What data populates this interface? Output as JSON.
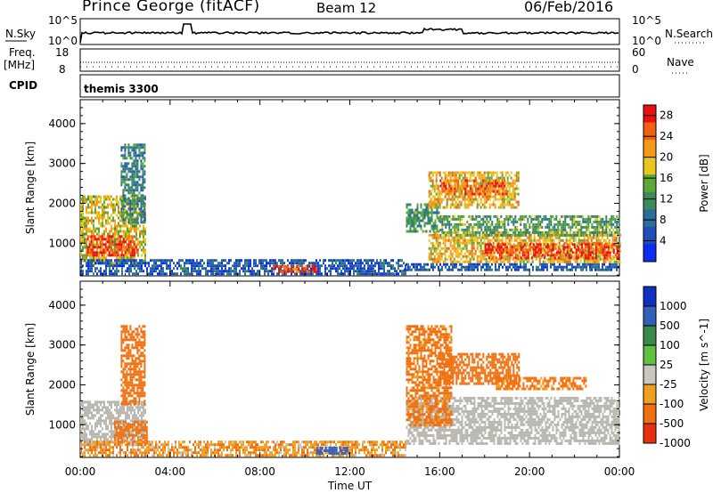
{
  "header": {
    "station": "Prince George (fitACF)",
    "beam": "Beam 12",
    "date": "06/Feb/2016"
  },
  "strips": {
    "nsky_label": "N.Sky",
    "nsky_ticks": [
      "10^5",
      "10^0"
    ],
    "nsearch_label": "N.Search",
    "nsearch_ticks": [
      "10^5",
      "10^0"
    ],
    "freq_label": "Freq.",
    "freq_unit": "[MHz]",
    "freq_ticks": [
      "18",
      "8"
    ],
    "nave_label": "Nave",
    "nave_ticks": [
      "60",
      "0"
    ],
    "cpid_label": "CPID",
    "cpid_value": "themis 3300"
  },
  "colors": {
    "power_scale": [
      "#0a2df2",
      "#1f4fb8",
      "#2c6e9a",
      "#3a8a5a",
      "#5aa838",
      "#e8c81e",
      "#f59a14",
      "#f06010",
      "#e81010"
    ],
    "velocity_scale": [
      "#1030c0",
      "#3060b8",
      "#3a8a4a",
      "#60c040",
      "#c8c8c0",
      "#f0a020",
      "#f07010",
      "#e83010",
      "#e01010"
    ],
    "ground_scatter": "#b8b8b0"
  },
  "chart_data": [
    {
      "type": "heatmap",
      "quantity": "Power",
      "xlabel": "",
      "ylabel": "Slant Range [km]",
      "x_ticks": [
        "00:00",
        "04:00",
        "08:00",
        "12:00",
        "16:00",
        "20:00",
        "00:00"
      ],
      "xlim_hours": [
        0,
        24
      ],
      "y_ticks": [
        1000,
        2000,
        3000,
        4000
      ],
      "ylim": [
        180,
        4600
      ],
      "colorbar": {
        "label": "Power [dB]",
        "ticks": [
          4,
          8,
          12,
          16,
          20,
          24,
          28
        ],
        "range": [
          0,
          30
        ]
      },
      "regions": [
        {
          "t0": 0.0,
          "t1": 2.9,
          "r0": 500,
          "r1": 2200,
          "db": 18
        },
        {
          "t0": 0.3,
          "t1": 2.6,
          "r0": 700,
          "r1": 1200,
          "db": 26
        },
        {
          "t0": 1.8,
          "t1": 2.9,
          "r0": 1500,
          "r1": 3500,
          "db": 10
        },
        {
          "t0": 0.0,
          "t1": 14.5,
          "r0": 200,
          "r1": 600,
          "db": 6
        },
        {
          "t0": 8.5,
          "t1": 10.5,
          "r0": 250,
          "r1": 450,
          "db": 27
        },
        {
          "t0": 14.4,
          "t1": 24.0,
          "r0": 300,
          "r1": 500,
          "db": 6
        },
        {
          "t0": 14.5,
          "t1": 16.0,
          "r0": 1300,
          "r1": 2000,
          "db": 12
        },
        {
          "t0": 15.5,
          "t1": 24.0,
          "r0": 500,
          "r1": 1300,
          "db": 20
        },
        {
          "t0": 18.0,
          "t1": 24.0,
          "r0": 600,
          "r1": 1000,
          "db": 27
        },
        {
          "t0": 16.0,
          "t1": 24.0,
          "r0": 1200,
          "r1": 1700,
          "db": 13
        },
        {
          "t0": 15.5,
          "t1": 19.5,
          "r0": 1900,
          "r1": 2800,
          "db": 20
        },
        {
          "t0": 16.0,
          "t1": 19.0,
          "r0": 2200,
          "r1": 2600,
          "db": 25
        }
      ]
    },
    {
      "type": "heatmap",
      "quantity": "Velocity",
      "xlabel": "Time UT",
      "ylabel": "Slant Range [km]",
      "x_ticks": [
        "00:00",
        "04:00",
        "08:00",
        "12:00",
        "16:00",
        "20:00",
        "00:00"
      ],
      "xlim_hours": [
        0,
        24
      ],
      "y_ticks": [
        1000,
        2000,
        3000,
        4000
      ],
      "ylim": [
        180,
        4600
      ],
      "colorbar": {
        "label": "Velocity [m s^-1]",
        "ticks": [
          1000,
          500,
          100,
          25,
          -25,
          -100,
          -500,
          -1000
        ]
      },
      "regions": [
        {
          "t0": 0.0,
          "t1": 2.9,
          "r0": 500,
          "r1": 1600,
          "v": 0,
          "ground": true
        },
        {
          "t0": 1.5,
          "t1": 3.0,
          "r0": 500,
          "r1": 1100,
          "v": -300
        },
        {
          "t0": 1.8,
          "t1": 2.9,
          "r0": 1500,
          "r1": 3500,
          "v": -200
        },
        {
          "t0": 0.0,
          "t1": 14.5,
          "r0": 200,
          "r1": 600,
          "v": -80
        },
        {
          "t0": 10.5,
          "t1": 12.0,
          "r0": 300,
          "r1": 450,
          "v": 200
        },
        {
          "t0": 14.5,
          "t1": 24.0,
          "r0": 500,
          "r1": 1700,
          "v": 0,
          "ground": true
        },
        {
          "t0": 14.5,
          "t1": 16.5,
          "r0": 1000,
          "r1": 3500,
          "v": -150
        },
        {
          "t0": 16.0,
          "t1": 19.5,
          "r0": 2000,
          "r1": 2800,
          "v": -400
        },
        {
          "t0": 18.5,
          "t1": 22.5,
          "r0": 1900,
          "r1": 2200,
          "v": -150
        }
      ]
    }
  ]
}
